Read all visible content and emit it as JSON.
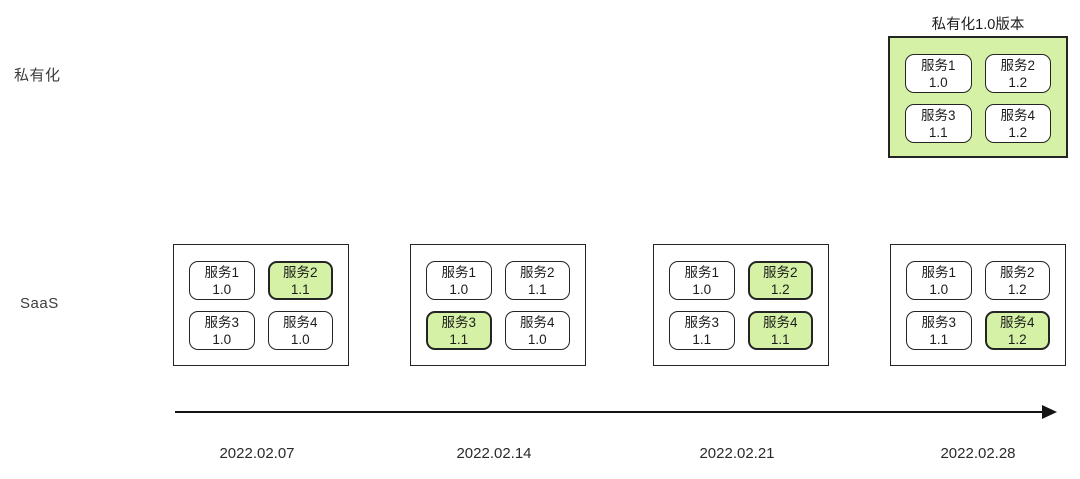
{
  "colors": {
    "highlight_green": "#d5f1a5",
    "box_border": "#242424",
    "text": "#1c1c1c"
  },
  "labels": {
    "private_row": "私有化",
    "saas_row": "SaaS"
  },
  "private_release": {
    "title": "私有化1.0版本",
    "services": [
      {
        "name": "服务1",
        "version": "1.0",
        "highlight": false
      },
      {
        "name": "服务2",
        "version": "1.2",
        "highlight": false
      },
      {
        "name": "服务3",
        "version": "1.1",
        "highlight": false
      },
      {
        "name": "服务4",
        "version": "1.2",
        "highlight": false
      }
    ]
  },
  "saas_snapshots": [
    {
      "date": "2022.02.07",
      "services": [
        {
          "name": "服务1",
          "version": "1.0",
          "highlight": false
        },
        {
          "name": "服务2",
          "version": "1.1",
          "highlight": true
        },
        {
          "name": "服务3",
          "version": "1.0",
          "highlight": false
        },
        {
          "name": "服务4",
          "version": "1.0",
          "highlight": false
        }
      ]
    },
    {
      "date": "2022.02.14",
      "services": [
        {
          "name": "服务1",
          "version": "1.0",
          "highlight": false
        },
        {
          "name": "服务2",
          "version": "1.1",
          "highlight": false
        },
        {
          "name": "服务3",
          "version": "1.1",
          "highlight": true
        },
        {
          "name": "服务4",
          "version": "1.0",
          "highlight": false
        }
      ]
    },
    {
      "date": "2022.02.21",
      "services": [
        {
          "name": "服务1",
          "version": "1.0",
          "highlight": false
        },
        {
          "name": "服务2",
          "version": "1.2",
          "highlight": true
        },
        {
          "name": "服务3",
          "version": "1.1",
          "highlight": false
        },
        {
          "name": "服务4",
          "version": "1.1",
          "highlight": true
        }
      ]
    },
    {
      "date": "2022.02.28",
      "services": [
        {
          "name": "服务1",
          "version": "1.0",
          "highlight": false
        },
        {
          "name": "服务2",
          "version": "1.2",
          "highlight": false
        },
        {
          "name": "服务3",
          "version": "1.1",
          "highlight": false
        },
        {
          "name": "服务4",
          "version": "1.2",
          "highlight": true
        }
      ]
    }
  ]
}
